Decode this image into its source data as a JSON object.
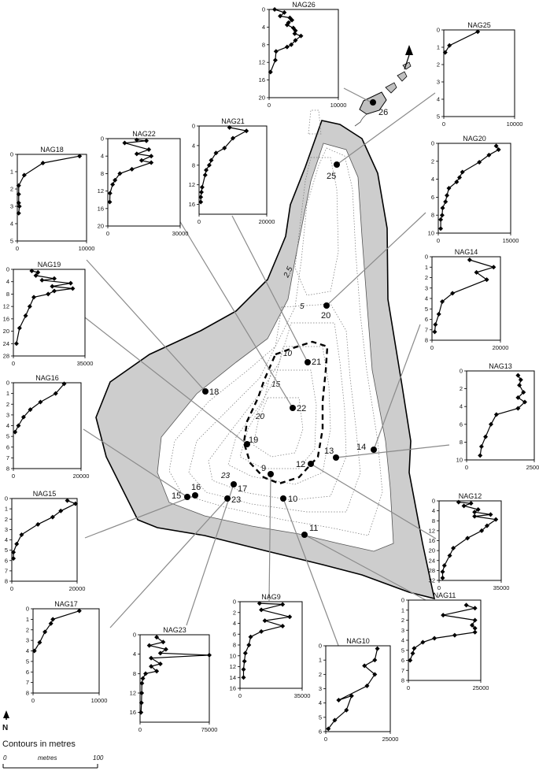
{
  "legend": {
    "contours_caption": "Contours in metres",
    "scale_start": "0",
    "scale_unit": "metres",
    "scale_end": "100",
    "north_label": "N"
  },
  "contour_labels": [
    "2.5",
    "5",
    "10",
    "15",
    "20",
    "23"
  ],
  "sites": [
    {
      "label": "9"
    },
    {
      "label": "10"
    },
    {
      "label": "11"
    },
    {
      "label": "12"
    },
    {
      "label": "13"
    },
    {
      "label": "14"
    },
    {
      "label": "15"
    },
    {
      "label": "16"
    },
    {
      "label": "17"
    },
    {
      "label": "18"
    },
    {
      "label": "19"
    },
    {
      "label": "20"
    },
    {
      "label": "21"
    },
    {
      "label": "22"
    },
    {
      "label": "23"
    },
    {
      "label": "25"
    },
    {
      "label": "26"
    }
  ],
  "chart_data": [
    {
      "type": "line",
      "title": "NAG26",
      "y_ticks": [
        0,
        4,
        8,
        12,
        16,
        20
      ],
      "x_ticks": [
        0,
        10000
      ],
      "xlim": [
        0,
        10000
      ],
      "ylim": [
        0,
        20
      ],
      "x": [
        800,
        2200,
        1600,
        3000,
        3300,
        2800,
        2600,
        3500,
        3800,
        3700,
        4600,
        3800,
        3200,
        2600,
        1000,
        900,
        200
      ],
      "y": [
        0,
        0.7,
        1.5,
        1.9,
        2.4,
        3.0,
        3.5,
        4.2,
        4.8,
        5.5,
        6.0,
        7.0,
        8.0,
        8.5,
        9.5,
        11.5,
        14.2
      ]
    },
    {
      "type": "line",
      "title": "NAG25",
      "y_ticks": [
        0,
        1,
        2,
        3,
        4,
        5
      ],
      "x_ticks": [
        0,
        10000
      ],
      "xlim": [
        0,
        10000
      ],
      "ylim": [
        0,
        5
      ],
      "x": [
        4800,
        800,
        200
      ],
      "y": [
        0.1,
        0.9,
        1.3
      ]
    },
    {
      "type": "line",
      "title": "NAG18",
      "y_ticks": [
        0,
        1,
        2,
        3,
        4,
        5
      ],
      "x_ticks": [
        0,
        10000
      ],
      "xlim": [
        0,
        10000
      ],
      "ylim": [
        0,
        5
      ],
      "x": [
        9000,
        3700,
        1000,
        200,
        200,
        200,
        300,
        200
      ],
      "y": [
        0.1,
        0.5,
        1.2,
        1.8,
        2.3,
        2.8,
        3.0,
        3.4
      ]
    },
    {
      "type": "line",
      "title": "NAG22",
      "y_ticks": [
        0,
        4,
        8,
        12,
        16,
        20
      ],
      "x_ticks": [
        0,
        30000
      ],
      "xlim": [
        0,
        30000
      ],
      "ylim": [
        0,
        20
      ],
      "x": [
        12000,
        16000,
        7000,
        17000,
        12000,
        18000,
        14000,
        18000,
        10000,
        5000,
        3000,
        2000,
        900,
        800
      ],
      "y": [
        0.3,
        0.5,
        1.0,
        2.5,
        3.5,
        4.0,
        5.0,
        5.5,
        7.0,
        8.0,
        9.5,
        10.5,
        12.5,
        14.5
      ]
    },
    {
      "type": "line",
      "title": "NAG21",
      "y_ticks": [
        0,
        4,
        8,
        12,
        16
      ],
      "x_ticks": [
        0,
        20000
      ],
      "xlim": [
        0,
        20000
      ],
      "ylim": [
        0,
        18
      ],
      "x": [
        9000,
        14000,
        10000,
        7500,
        5000,
        3600,
        3000,
        2100,
        1800,
        900,
        700,
        500,
        500
      ],
      "y": [
        0.3,
        1.0,
        2.5,
        4.5,
        5.5,
        7.0,
        8.0,
        9.0,
        10.0,
        12.5,
        13.5,
        14.5,
        15.5
      ]
    },
    {
      "type": "line",
      "title": "NAG20",
      "y_ticks": [
        0,
        2,
        4,
        6,
        8,
        10
      ],
      "x_ticks": [
        0,
        15000
      ],
      "xlim": [
        0,
        15000
      ],
      "ylim": [
        0,
        10
      ],
      "x": [
        12000,
        12500,
        10500,
        8500,
        5000,
        4400,
        3800,
        2200,
        1800,
        1500,
        900,
        800,
        500,
        500
      ],
      "y": [
        0.3,
        0.7,
        1.3,
        2.1,
        3.2,
        3.8,
        4.3,
        5.0,
        5.8,
        6.5,
        7.2,
        8.0,
        8.5,
        9.5
      ]
    },
    {
      "type": "line",
      "title": "NAG19",
      "y_ticks": [
        0,
        4,
        8,
        12,
        16,
        20,
        24,
        28
      ],
      "x_ticks": [
        0,
        35000
      ],
      "xlim": [
        0,
        35000
      ],
      "ylim": [
        0,
        28
      ],
      "x": [
        9000,
        12000,
        11000,
        20000,
        14000,
        28000,
        19000,
        29000,
        20000,
        17000,
        10000,
        8000,
        6000,
        3000,
        1500
      ],
      "y": [
        0.5,
        1.0,
        2.0,
        3.0,
        3.5,
        4.5,
        5.5,
        6.2,
        7.0,
        8.0,
        9.0,
        12.0,
        15.0,
        19.0,
        24.0
      ]
    },
    {
      "type": "line",
      "title": "NAG16",
      "y_ticks": [
        0,
        1,
        2,
        3,
        4,
        5,
        6,
        7,
        8
      ],
      "x_ticks": [
        0,
        20000
      ],
      "xlim": [
        0,
        20000
      ],
      "ylim": [
        0,
        8
      ],
      "x": [
        15000,
        12500,
        8000,
        5000,
        3000,
        1500,
        500
      ],
      "y": [
        0.1,
        1.0,
        1.8,
        2.5,
        3.2,
        4.0,
        4.6
      ]
    },
    {
      "type": "line",
      "title": "NAG14",
      "y_ticks": [
        0,
        1,
        2,
        3,
        4,
        5,
        6,
        7,
        8
      ],
      "x_ticks": [
        0,
        20000
      ],
      "xlim": [
        0,
        20000
      ],
      "ylim": [
        0,
        8
      ],
      "x": [
        11000,
        18000,
        13000,
        16000,
        6000,
        3000,
        2000,
        1000,
        800
      ],
      "y": [
        0.3,
        1.0,
        1.5,
        2.2,
        3.5,
        4.3,
        5.5,
        6.5,
        7.2
      ]
    },
    {
      "type": "line",
      "title": "NAG13",
      "y_ticks": [
        0,
        2,
        4,
        6,
        8,
        10
      ],
      "x_ticks": [
        0,
        25000
      ],
      "xlim": [
        0,
        25000
      ],
      "ylim": [
        0,
        10
      ],
      "x": [
        19000,
        20000,
        19500,
        21000,
        19000,
        21500,
        19000,
        11000,
        9000,
        7000,
        5500,
        5000
      ],
      "y": [
        0.5,
        1.0,
        1.6,
        2.4,
        3.0,
        3.5,
        4.2,
        4.9,
        6.0,
        7.4,
        8.5,
        9.5
      ]
    },
    {
      "type": "line",
      "title": "NAG12",
      "y_ticks": [
        0,
        4,
        8,
        12,
        16,
        20,
        24,
        28,
        32
      ],
      "x_ticks": [
        0,
        35000
      ],
      "xlim": [
        0,
        35000
      ],
      "ylim": [
        0,
        32
      ],
      "x": [
        11000,
        18000,
        14000,
        22000,
        20000,
        29000,
        20000,
        32000,
        27000,
        24000,
        16000,
        8000,
        6000,
        3000,
        2000,
        2000
      ],
      "y": [
        0.5,
        1.0,
        2.0,
        3.5,
        4.5,
        5.5,
        6.2,
        7.5,
        10.0,
        12.0,
        15.0,
        19.0,
        22.0,
        26.0,
        28.5,
        31.0
      ]
    },
    {
      "type": "line",
      "title": "NAG15",
      "y_ticks": [
        0,
        1,
        2,
        3,
        4,
        5,
        6,
        7,
        8
      ],
      "x_ticks": [
        0,
        20000
      ],
      "xlim": [
        0,
        20000
      ],
      "ylim": [
        0,
        8
      ],
      "x": [
        17000,
        19500,
        15000,
        12500,
        8000,
        3000,
        1500,
        500,
        500
      ],
      "y": [
        0.2,
        0.5,
        1.2,
        1.8,
        2.5,
        3.5,
        4.4,
        5.2,
        5.8
      ]
    },
    {
      "type": "line",
      "title": "NAG11",
      "y_ticks": [
        0,
        1,
        2,
        3,
        4,
        5,
        6,
        7,
        8
      ],
      "x_ticks": [
        0,
        25000
      ],
      "xlim": [
        0,
        25000
      ],
      "ylim": [
        0,
        8
      ],
      "x": [
        20000,
        23000,
        12000,
        23000,
        22000,
        23000,
        23000,
        16000,
        9000,
        5000,
        2000,
        1500,
        600
      ],
      "y": [
        0.5,
        0.8,
        1.5,
        2.0,
        2.5,
        2.8,
        3.2,
        3.5,
        3.8,
        4.2,
        4.8,
        5.3,
        6.0
      ]
    },
    {
      "type": "line",
      "title": "NAG17",
      "y_ticks": [
        0,
        1,
        2,
        3,
        4,
        5,
        6,
        7,
        8
      ],
      "x_ticks": [
        0,
        10000
      ],
      "xlim": [
        0,
        10000
      ],
      "ylim": [
        0,
        8
      ],
      "x": [
        7000,
        3000,
        2700,
        1800,
        1000,
        200
      ],
      "y": [
        0.2,
        1.0,
        1.4,
        2.2,
        3.2,
        4.0
      ]
    },
    {
      "type": "line",
      "title": "NAG23",
      "y_ticks": [
        0,
        4,
        8,
        12,
        16
      ],
      "x_ticks": [
        0,
        75000
      ],
      "xlim": [
        0,
        75000
      ],
      "ylim": [
        0,
        18
      ],
      "x": [
        18000,
        25000,
        10000,
        28000,
        22000,
        75000,
        12000,
        22000,
        12000,
        18000,
        6000,
        3000,
        2000,
        1800,
        1500,
        1000
      ],
      "y": [
        0.5,
        1.5,
        2.2,
        3.0,
        3.8,
        4.2,
        4.8,
        6.0,
        6.5,
        7.5,
        8.0,
        9.0,
        10.0,
        12.0,
        14.0,
        16.0
      ]
    },
    {
      "type": "line",
      "title": "NAG9",
      "y_ticks": [
        0,
        2,
        4,
        6,
        8,
        10,
        12,
        14,
        16
      ],
      "x_ticks": [
        0,
        35000
      ],
      "xlim": [
        0,
        35000
      ],
      "ylim": [
        0,
        16
      ],
      "x": [
        11000,
        24000,
        12000,
        28000,
        14000,
        24000,
        12000,
        6000,
        5000,
        3000,
        2500,
        2000,
        2000
      ],
      "y": [
        0.3,
        0.5,
        1.5,
        2.8,
        3.5,
        4.5,
        5.5,
        6.5,
        8.0,
        9.5,
        11.0,
        12.5,
        14.0
      ]
    },
    {
      "type": "line",
      "title": "NAG10",
      "y_ticks": [
        0,
        1,
        2,
        3,
        4,
        5,
        6
      ],
      "x_ticks": [
        0,
        25000
      ],
      "xlim": [
        0,
        25000
      ],
      "ylim": [
        0,
        6
      ],
      "x": [
        20000,
        19000,
        15000,
        19000,
        16000,
        5000,
        10000,
        8000,
        3500,
        1000
      ],
      "y": [
        0.2,
        1.0,
        1.4,
        2.0,
        2.8,
        3.8,
        3.5,
        4.5,
        5.2,
        5.8
      ]
    }
  ]
}
